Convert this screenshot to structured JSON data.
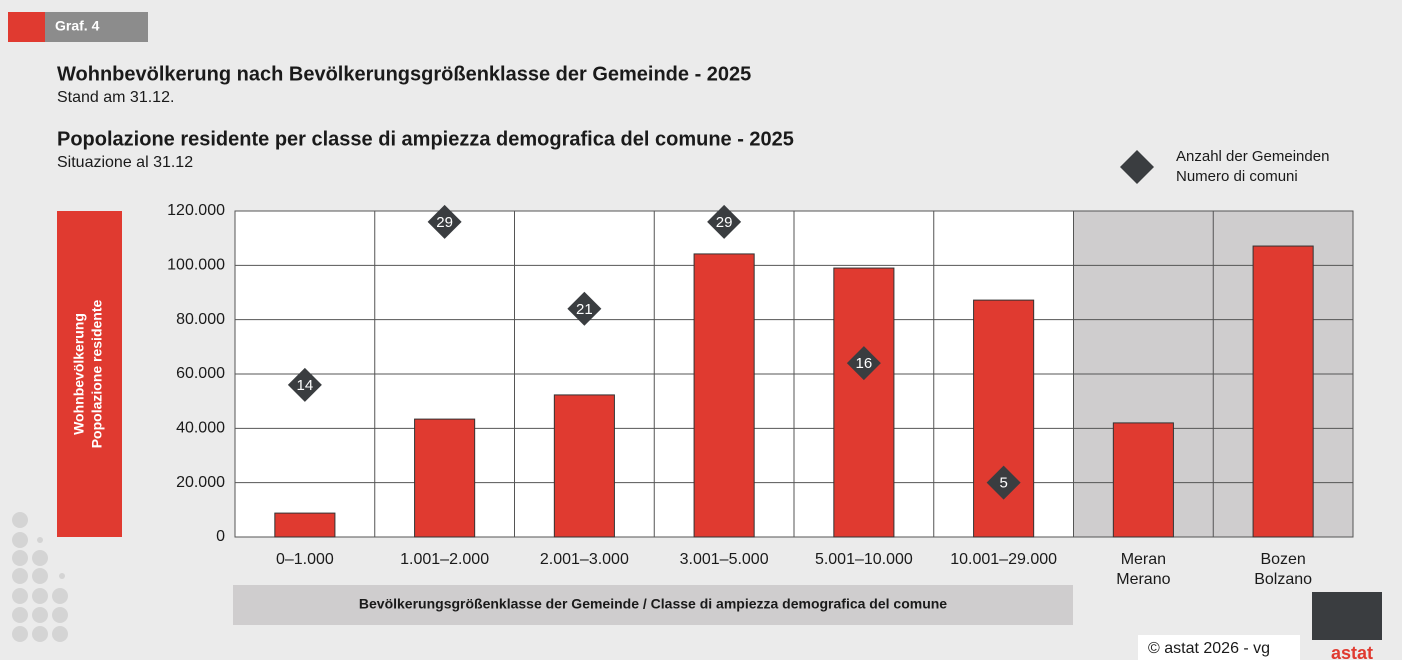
{
  "tag": "Graf. 4",
  "footer": "© astat 2026 - vg",
  "logo_text": "astat",
  "chart_data": {
    "type": "bar",
    "title": "Wohnbevölkerung nach Bevölkerungsgrößenklasse der Gemeinde - 2025",
    "subtitle": "Stand am 31.12.",
    "title_it": "Popolazione residente per classe di ampiezza demografica del comune - 2025",
    "subtitle_it": "Situazione al 31.12",
    "y_label": [
      "Wohnbevölkerung",
      "Popolazione residente"
    ],
    "x_label": "Bevölkerungsgrößenklasse der Gemeinde / Classe di ampiezza demografica del comune",
    "categories": [
      "0–1.000",
      "1.001–2.000",
      "2.001–3.000",
      "3.001–5.000",
      "5.001–10.000",
      "10.001–29.000",
      "Meran\nMerano",
      "Bozen\nBolzano"
    ],
    "series": [
      {
        "color": "#e03a30",
        "values": [
          8800,
          43400,
          52300,
          104200,
          99000,
          87200,
          42000,
          107100
        ]
      },
      {
        "name": [
          "Anzahl der Gemeinden",
          "Numero di comuni"
        ],
        "color": "#3a3d40",
        "axis": "y2",
        "marker": "diamond",
        "values": [
          14,
          29,
          21,
          29,
          16,
          5,
          null,
          null
        ]
      }
    ],
    "ylim": [
      0,
      120000
    ],
    "yticks": [
      0,
      {
        "value": 20000,
        "label": "20.000"
      },
      {
        "value": 40000,
        "label": "40.000"
      },
      {
        "value": 60000,
        "label": "60.000"
      },
      {
        "value": 80000,
        "label": "80.000"
      },
      {
        "value": 100000,
        "label": "100.000"
      },
      {
        "value": 120000,
        "label": "120.000"
      }
    ],
    "y2lim": [
      0,
      30
    ],
    "grid": true,
    "shaded_categories": [
      6,
      7
    ],
    "legend": "top-right"
  }
}
